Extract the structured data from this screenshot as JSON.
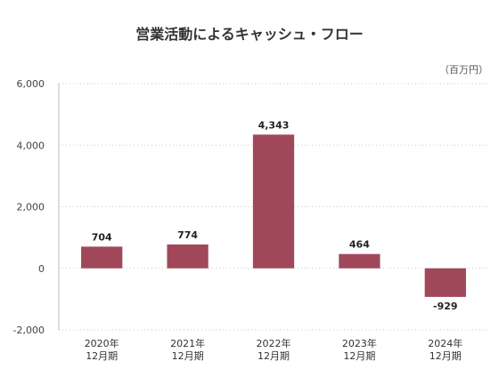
{
  "chart_data": {
    "type": "bar",
    "title": "営業活動によるキャッシュ・フロー",
    "unit_label": "（百万円）",
    "categories": [
      [
        "2020年",
        "12月期"
      ],
      [
        "2021年",
        "12月期"
      ],
      [
        "2022年",
        "12月期"
      ],
      [
        "2023年",
        "12月期"
      ],
      [
        "2024年",
        "12月期"
      ]
    ],
    "values": [
      704,
      774,
      4343,
      464,
      -929
    ],
    "value_labels": [
      "704",
      "774",
      "4,343",
      "464",
      "-929"
    ],
    "ylim": [
      -2000,
      6000
    ],
    "yticks": [
      -2000,
      0,
      2000,
      4000,
      6000
    ],
    "ytick_labels": [
      "-2,000",
      "0",
      "2,000",
      "4,000",
      "6,000"
    ],
    "grid": true,
    "bar_color": "#a0485a"
  }
}
